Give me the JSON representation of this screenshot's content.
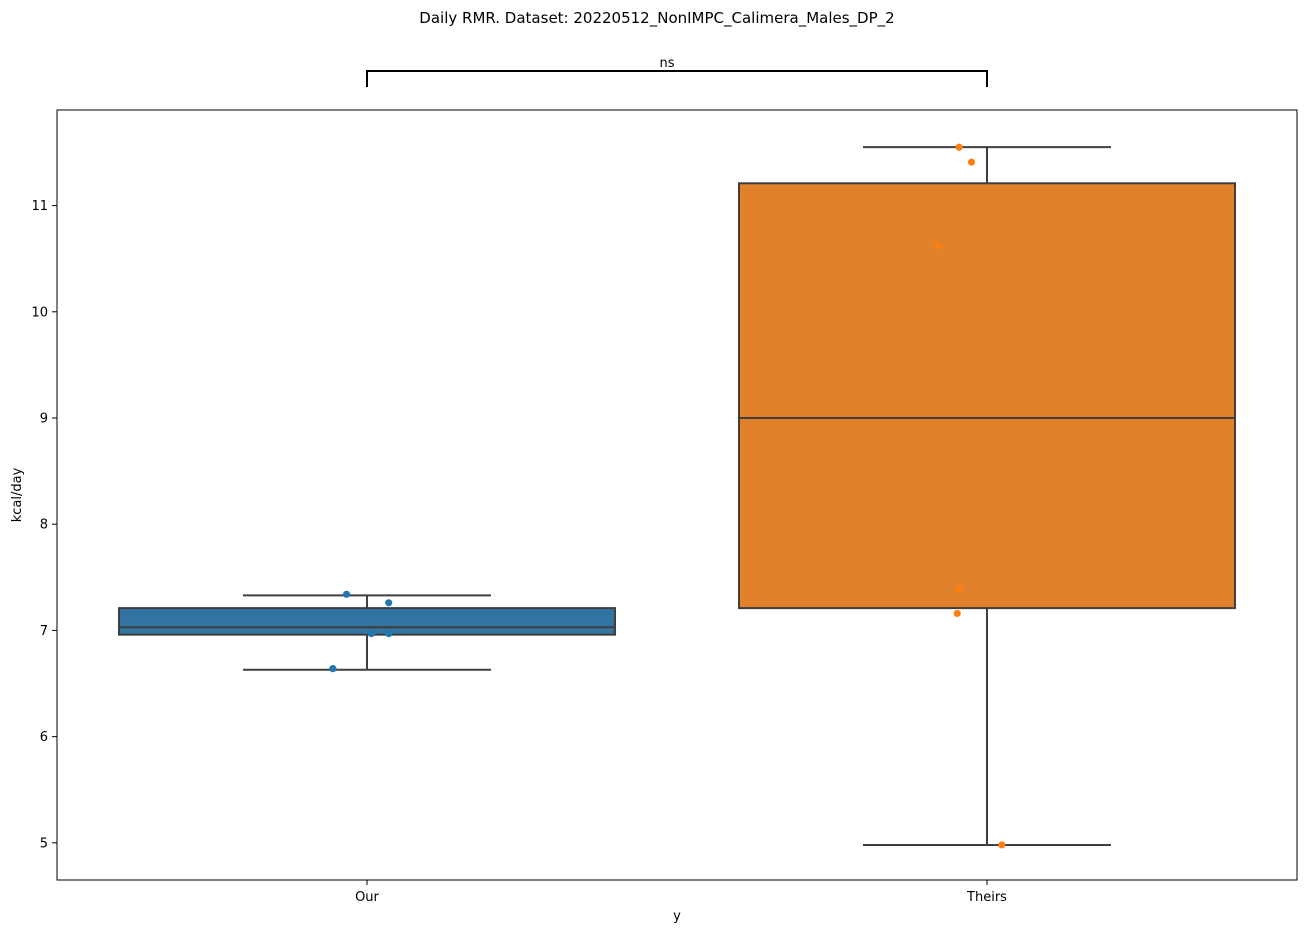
{
  "chart_data": {
    "type": "box",
    "title": "Daily RMR. Dataset: 20220512_NonIMPC_Calimera_Males_DP_2",
    "xlabel": "y",
    "ylabel": "kcal/day",
    "categories": [
      "Our",
      "Theirs"
    ],
    "ylim": [
      4.65,
      11.9
    ],
    "yticks": [
      5,
      6,
      7,
      8,
      9,
      10,
      11
    ],
    "grid": false,
    "significance": {
      "label": "ns",
      "between": [
        "Our",
        "Theirs"
      ]
    },
    "boxes": [
      {
        "category": "Our",
        "color": "#3274a1",
        "whisker_low": 6.63,
        "q1": 6.96,
        "median": 7.03,
        "q3": 7.21,
        "whisker_high": 7.33,
        "points": [
          {
            "offset": -0.033,
            "value": 7.34
          },
          {
            "offset": 0.035,
            "value": 7.26
          },
          {
            "offset": 0.007,
            "value": 6.97
          },
          {
            "offset": 0.035,
            "value": 6.97
          },
          {
            "offset": -0.055,
            "value": 6.64
          }
        ]
      },
      {
        "category": "Theirs",
        "color": "#e1812c",
        "whisker_low": 4.98,
        "q1": 7.21,
        "median": 9.0,
        "q3": 11.21,
        "whisker_high": 11.55,
        "points": [
          {
            "offset": -0.045,
            "value": 11.55
          },
          {
            "offset": -0.025,
            "value": 11.41
          },
          {
            "offset": -0.078,
            "value": 10.62
          },
          {
            "offset": -0.045,
            "value": 7.39
          },
          {
            "offset": -0.048,
            "value": 7.16
          },
          {
            "offset": 0.024,
            "value": 4.98
          }
        ]
      }
    ],
    "point_colors": [
      "#1f77b4",
      "#ff7f0e"
    ]
  }
}
